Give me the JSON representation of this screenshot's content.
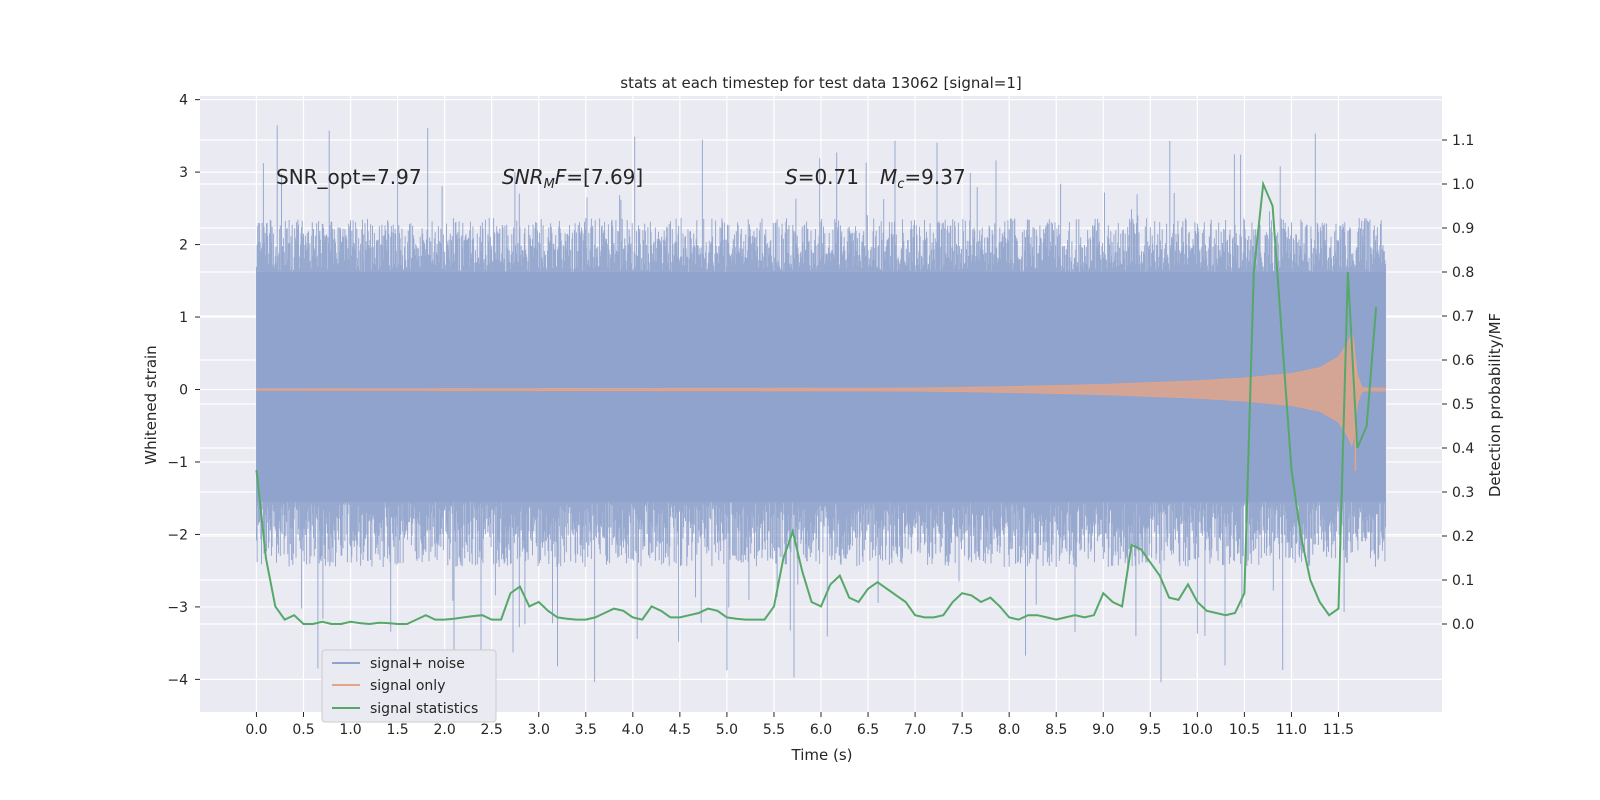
{
  "chart_data": {
    "type": "line",
    "title": "stats at each timestep for test data 13062 [signal=1]",
    "xlabel": "Time (s)",
    "ylabel_left": "Whitened strain",
    "ylabel_right": "Detection probability/MF",
    "xlim": [
      -0.6,
      12.6
    ],
    "ylim_left": [
      -4.45,
      4.05
    ],
    "ylim_right": [
      -0.2,
      1.2
    ],
    "grid": true,
    "x_ticks": [
      0.0,
      0.5,
      1.0,
      1.5,
      2.0,
      2.5,
      3.0,
      3.5,
      4.0,
      4.5,
      5.0,
      5.5,
      6.0,
      6.5,
      7.0,
      7.5,
      8.0,
      8.5,
      9.0,
      9.5,
      10.0,
      10.5,
      11.0,
      11.5
    ],
    "x_tick_labels": [
      "0.0",
      "0.5",
      "1.0",
      "1.5",
      "2.0",
      "2.5",
      "3.0",
      "3.5",
      "4.0",
      "4.5",
      "5.0",
      "5.5",
      "6.0",
      "6.5",
      "7.0",
      "7.5",
      "8.0",
      "8.5",
      "9.0",
      "9.5",
      "10.0",
      "10.5",
      "11.0",
      "11.5"
    ],
    "y_ticks_left": [
      -4,
      -3,
      -2,
      -1,
      0,
      1,
      2,
      3,
      4
    ],
    "y_tick_labels_left": [
      "−4",
      "−3",
      "−2",
      "−1",
      "0",
      "1",
      "2",
      "3",
      "4"
    ],
    "y_ticks_right": [
      0.0,
      0.1,
      0.2,
      0.3,
      0.4,
      0.5,
      0.6,
      0.7,
      0.8,
      0.9,
      1.0,
      1.1
    ],
    "y_tick_labels_right": [
      "0.0",
      "0.1",
      "0.2",
      "0.3",
      "0.4",
      "0.5",
      "0.6",
      "0.7",
      "0.8",
      "0.9",
      "1.0",
      "1.1"
    ],
    "legend": {
      "placement": "lower-left",
      "entries": [
        {
          "label": "signal+ noise",
          "color": "#8fa2cc"
        },
        {
          "label": "signal only",
          "color": "#e5a487"
        },
        {
          "label": "signal statistics",
          "color": "#55a868"
        }
      ]
    },
    "annotations": {
      "snr_opt": "SNR_opt=7.97",
      "snr_mf_var": "SNR",
      "snr_mf_sub": "M",
      "snr_mf_var2": "F",
      "snr_mf_value": "=[7.69]",
      "s_var": "S",
      "s_value": "=0.71",
      "mc_var": "M",
      "mc_sub": "c",
      "mc_value": "=9.37"
    },
    "noise_series": {
      "name": "signal+ noise",
      "x_range": [
        0.0,
        12.0
      ],
      "core_upper": 1.62,
      "core_lower": -1.55,
      "typical_spike": 2.3,
      "max_spike": 3.68,
      "min_spike": -4.08
    },
    "signal_series": {
      "name": "signal only",
      "x_range": [
        0.0,
        12.0
      ],
      "envelope": [
        [
          0.0,
          0.01
        ],
        [
          7.0,
          0.02
        ],
        [
          8.0,
          0.04
        ],
        [
          9.0,
          0.07
        ],
        [
          10.0,
          0.12
        ],
        [
          10.5,
          0.16
        ],
        [
          11.0,
          0.22
        ],
        [
          11.3,
          0.3
        ],
        [
          11.5,
          0.45
        ],
        [
          11.6,
          0.65
        ],
        [
          11.65,
          0.8
        ],
        [
          11.7,
          0.2
        ],
        [
          11.75,
          0.02
        ]
      ],
      "min_dip": -1.12
    },
    "stat_series": {
      "name": "signal statistics",
      "x": [
        0.0,
        0.1,
        0.2,
        0.3,
        0.4,
        0.5,
        0.6,
        0.7,
        0.8,
        0.9,
        1.0,
        1.1,
        1.2,
        1.3,
        1.4,
        1.5,
        1.6,
        1.7,
        1.8,
        1.9,
        2.0,
        2.1,
        2.2,
        2.3,
        2.4,
        2.5,
        2.6,
        2.7,
        2.8,
        2.9,
        3.0,
        3.1,
        3.2,
        3.3,
        3.4,
        3.5,
        3.6,
        3.7,
        3.8,
        3.9,
        4.0,
        4.1,
        4.2,
        4.3,
        4.4,
        4.5,
        4.6,
        4.7,
        4.8,
        4.9,
        5.0,
        5.1,
        5.2,
        5.3,
        5.4,
        5.5,
        5.6,
        5.7,
        5.8,
        5.9,
        6.0,
        6.1,
        6.2,
        6.3,
        6.4,
        6.5,
        6.6,
        6.7,
        6.8,
        6.9,
        7.0,
        7.1,
        7.2,
        7.3,
        7.4,
        7.5,
        7.6,
        7.7,
        7.8,
        7.9,
        8.0,
        8.1,
        8.2,
        8.3,
        8.4,
        8.5,
        8.6,
        8.7,
        8.8,
        8.9,
        9.0,
        9.1,
        9.2,
        9.3,
        9.4,
        9.5,
        9.6,
        9.7,
        9.8,
        9.9,
        10.0,
        10.1,
        10.2,
        10.3,
        10.4,
        10.5,
        10.6,
        10.7,
        10.8,
        10.9,
        11.0,
        11.1,
        11.2,
        11.3,
        11.4,
        11.5,
        11.6,
        11.65,
        11.7,
        11.8,
        11.9
      ],
      "y": [
        0.35,
        0.15,
        0.04,
        0.01,
        0.02,
        0.0,
        0.0,
        0.005,
        0.0,
        0.0,
        0.005,
        0.002,
        0.0,
        0.003,
        0.002,
        0.0,
        0.0,
        0.01,
        0.02,
        0.01,
        0.01,
        0.012,
        0.015,
        0.018,
        0.02,
        0.01,
        0.01,
        0.07,
        0.085,
        0.04,
        0.05,
        0.03,
        0.015,
        0.012,
        0.01,
        0.01,
        0.015,
        0.025,
        0.035,
        0.03,
        0.015,
        0.01,
        0.04,
        0.03,
        0.015,
        0.015,
        0.02,
        0.025,
        0.035,
        0.03,
        0.015,
        0.012,
        0.01,
        0.01,
        0.01,
        0.04,
        0.15,
        0.21,
        0.12,
        0.05,
        0.04,
        0.09,
        0.11,
        0.06,
        0.05,
        0.08,
        0.095,
        0.08,
        0.065,
        0.05,
        0.02,
        0.015,
        0.015,
        0.02,
        0.05,
        0.07,
        0.065,
        0.05,
        0.06,
        0.04,
        0.015,
        0.01,
        0.02,
        0.02,
        0.015,
        0.01,
        0.015,
        0.02,
        0.015,
        0.02,
        0.07,
        0.05,
        0.04,
        0.18,
        0.17,
        0.14,
        0.11,
        0.06,
        0.055,
        0.09,
        0.05,
        0.03,
        0.025,
        0.02,
        0.025,
        0.07,
        0.8,
        1.0,
        0.95,
        0.65,
        0.35,
        0.2,
        0.1,
        0.05,
        0.02,
        0.035,
        0.8,
        0.6,
        0.4,
        0.45,
        0.72
      ]
    }
  }
}
